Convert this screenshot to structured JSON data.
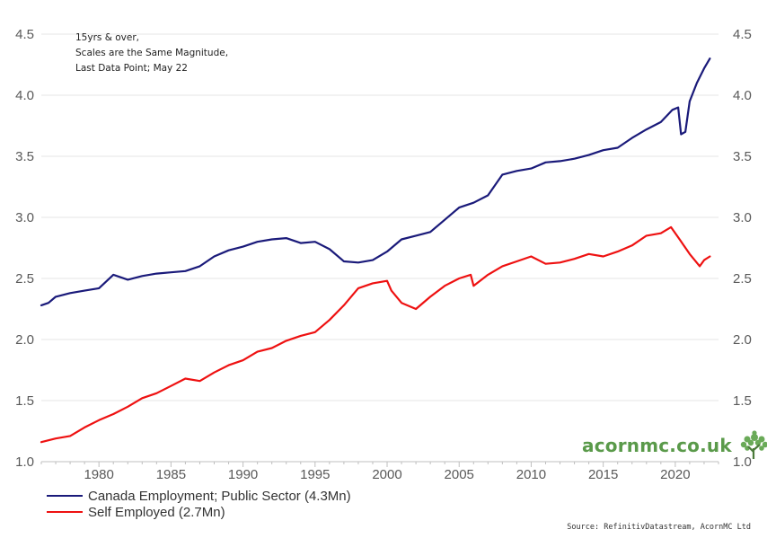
{
  "chart_data": {
    "type": "line",
    "title": "",
    "xlabel": "",
    "ylabel": "",
    "xlim": [
      1976,
      2023
    ],
    "ylim": [
      1.0,
      4.5
    ],
    "y_ticks": [
      "1.0",
      "1.5",
      "2.0",
      "2.5",
      "3.0",
      "3.5",
      "4.0",
      "4.5"
    ],
    "x_ticks": [
      "1980",
      "1985",
      "1990",
      "1995",
      "2000",
      "2005",
      "2010",
      "2015",
      "2020"
    ],
    "annotation": [
      "15yrs & over,",
      "Scales are the Same Magnitude,",
      "Last Data Point; May 22"
    ],
    "series": [
      {
        "name": "Canada Employment; Public Sector (4.3Mn)",
        "color": "#1a1a7a",
        "x": [
          1976,
          1976.5,
          1977,
          1978,
          1979,
          1980,
          1981,
          1982,
          1983,
          1984,
          1985,
          1986,
          1987,
          1988,
          1989,
          1990,
          1991,
          1992,
          1993,
          1994,
          1995,
          1996,
          1997,
          1998,
          1999,
          2000,
          2001,
          2002,
          2003,
          2004,
          2005,
          2006,
          2007,
          2008,
          2009,
          2010,
          2011,
          2012,
          2013,
          2014,
          2015,
          2016,
          2017,
          2018,
          2019,
          2019.8,
          2020.2,
          2020.4,
          2020.7,
          2021,
          2021.5,
          2022,
          2022.4
        ],
        "values": [
          2.28,
          2.3,
          2.35,
          2.38,
          2.4,
          2.42,
          2.53,
          2.49,
          2.52,
          2.54,
          2.55,
          2.56,
          2.6,
          2.68,
          2.73,
          2.76,
          2.8,
          2.82,
          2.83,
          2.79,
          2.8,
          2.74,
          2.64,
          2.63,
          2.65,
          2.72,
          2.82,
          2.85,
          2.88,
          2.98,
          3.08,
          3.12,
          3.18,
          3.35,
          3.38,
          3.4,
          3.45,
          3.46,
          3.48,
          3.51,
          3.55,
          3.57,
          3.65,
          3.72,
          3.78,
          3.88,
          3.9,
          3.68,
          3.7,
          3.95,
          4.1,
          4.22,
          4.3
        ]
      },
      {
        "name": "Self Employed (2.7Mn)",
        "color": "#ee1111",
        "x": [
          1976,
          1977,
          1978,
          1979,
          1980,
          1981,
          1982,
          1983,
          1984,
          1985,
          1986,
          1987,
          1988,
          1989,
          1990,
          1991,
          1992,
          1993,
          1994,
          1995,
          1996,
          1997,
          1998,
          1999,
          2000,
          2000.3,
          2001,
          2002,
          2003,
          2004,
          2005,
          2005.8,
          2006,
          2007,
          2008,
          2009,
          2010,
          2011,
          2012,
          2013,
          2014,
          2015,
          2016,
          2017,
          2018,
          2019,
          2019.7,
          2020.3,
          2021,
          2021.7,
          2022,
          2022.4
        ],
        "values": [
          1.16,
          1.19,
          1.21,
          1.28,
          1.34,
          1.39,
          1.45,
          1.52,
          1.56,
          1.62,
          1.68,
          1.66,
          1.73,
          1.79,
          1.83,
          1.9,
          1.93,
          1.99,
          2.03,
          2.06,
          2.16,
          2.28,
          2.42,
          2.46,
          2.48,
          2.4,
          2.3,
          2.25,
          2.35,
          2.44,
          2.5,
          2.53,
          2.44,
          2.53,
          2.6,
          2.64,
          2.68,
          2.62,
          2.63,
          2.66,
          2.7,
          2.68,
          2.72,
          2.77,
          2.85,
          2.87,
          2.92,
          2.82,
          2.7,
          2.6,
          2.65,
          2.68
        ]
      }
    ]
  },
  "legend": {
    "items": [
      {
        "label": "Canada Employment; Public Sector (4.3Mn)",
        "color": "#1a1a7a"
      },
      {
        "label": "Self Employed (2.7Mn)",
        "color": "#ee1111"
      }
    ]
  },
  "source_text": "Source: RefinitivDatastream, AcornMC Ltd",
  "brand": {
    "text": "acornmc.co.uk",
    "icon": "tree-icon",
    "color": "#5a9a4a"
  }
}
